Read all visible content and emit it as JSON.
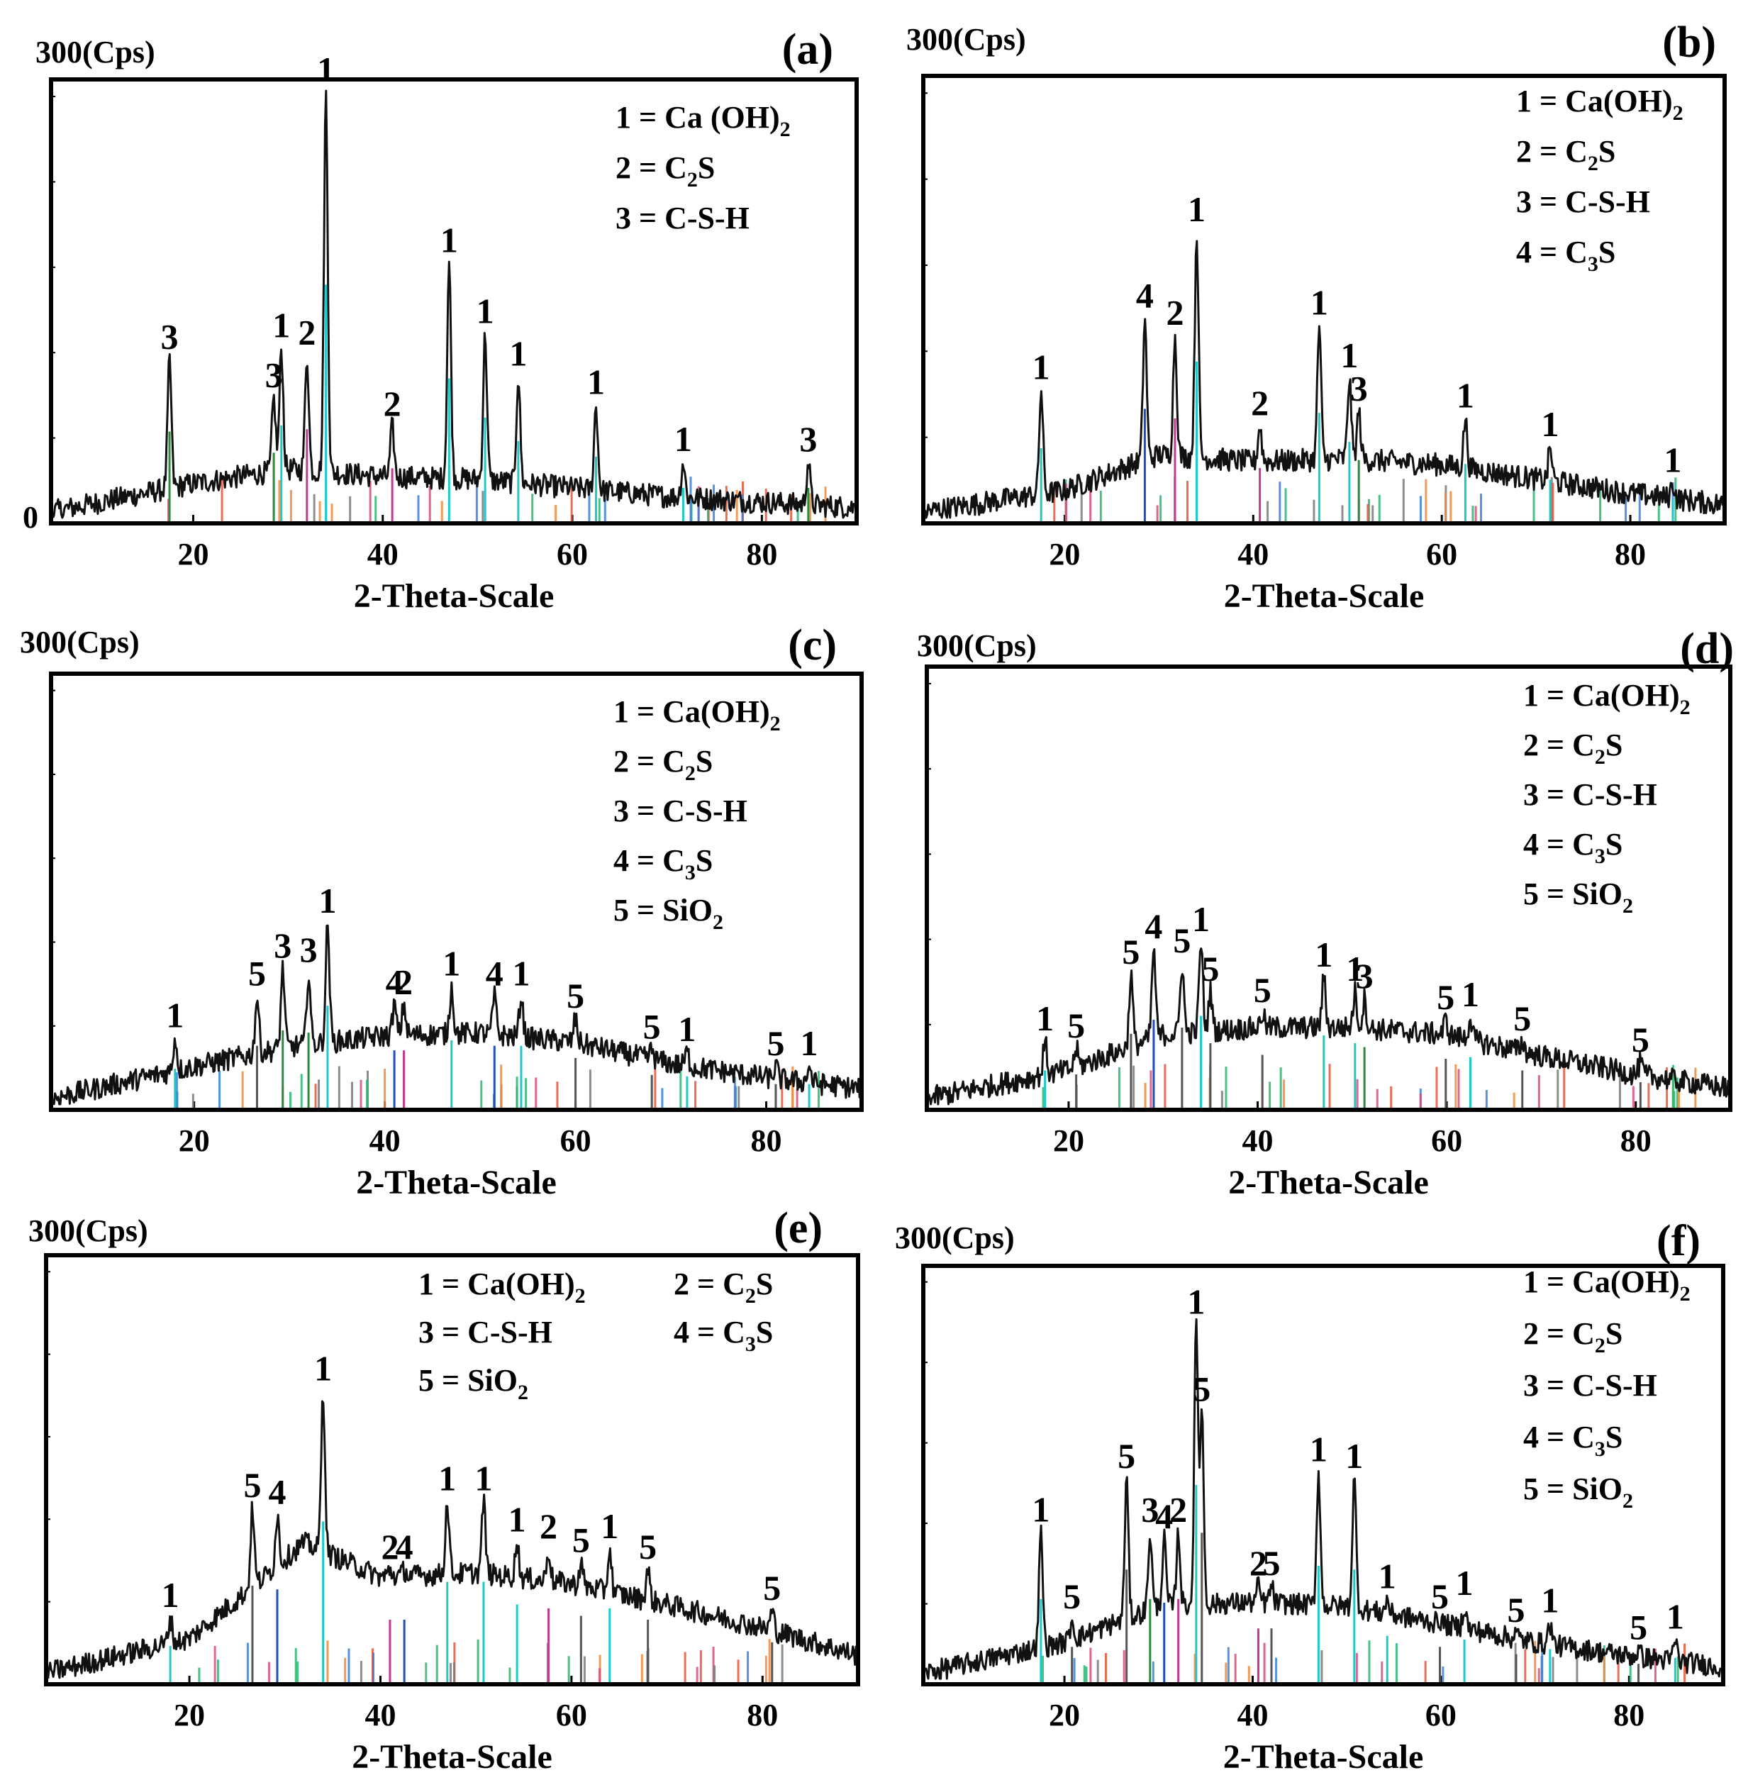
{
  "figure": {
    "x_axis_label": "2-Theta-Scale",
    "y_unit_label": "300(Cps)",
    "x_ticks": [
      20,
      40,
      60,
      80
    ],
    "x_range": [
      5,
      90
    ],
    "y_zero_label": "0"
  },
  "chart_data": [
    {
      "type": "line",
      "panel": "(a)",
      "xlabel": "2-Theta-Scale",
      "ylabel": "300(Cps)",
      "xlim": [
        5,
        90
      ],
      "ylim": [
        0,
        300
      ],
      "legend": [
        {
          "key": "1",
          "base": "Ca (OH)",
          "sub": "2",
          "tail": ""
        },
        {
          "key": "2",
          "base": "C",
          "sub": "2",
          "tail": "S"
        },
        {
          "key": "3",
          "base": "C-S-H",
          "sub": "",
          "tail": ""
        }
      ],
      "baseline": [
        [
          5,
          5
        ],
        [
          20,
          25
        ],
        [
          30,
          35
        ],
        [
          40,
          30
        ],
        [
          50,
          28
        ],
        [
          60,
          22
        ],
        [
          70,
          16
        ],
        [
          80,
          12
        ],
        [
          90,
          8
        ]
      ],
      "peaks": [
        {
          "x": 17.5,
          "y": 112,
          "label": "3"
        },
        {
          "x": 28.5,
          "y": 85,
          "label": "3"
        },
        {
          "x": 29.3,
          "y": 120,
          "label": "1"
        },
        {
          "x": 32.0,
          "y": 115,
          "label": "2"
        },
        {
          "x": 34.0,
          "y": 300,
          "label": "1"
        },
        {
          "x": 41.0,
          "y": 65,
          "label": "2"
        },
        {
          "x": 47.0,
          "y": 180,
          "label": "1"
        },
        {
          "x": 50.8,
          "y": 130,
          "label": "1"
        },
        {
          "x": 54.3,
          "y": 100,
          "label": "1"
        },
        {
          "x": 62.5,
          "y": 80,
          "label": "1"
        },
        {
          "x": 71.7,
          "y": 40,
          "label": "1"
        },
        {
          "x": 84.9,
          "y": 40,
          "label": "3"
        }
      ]
    },
    {
      "type": "line",
      "panel": "(b)",
      "xlabel": "2-Theta-Scale",
      "ylabel": "300(Cps)",
      "xlim": [
        5,
        90
      ],
      "ylim": [
        0,
        300
      ],
      "legend": [
        {
          "key": "1",
          "base": "Ca(OH)",
          "sub": "2",
          "tail": ""
        },
        {
          "key": "2",
          "base": "C",
          "sub": "2",
          "tail": "S"
        },
        {
          "key": "3",
          "base": "C-S-H",
          "sub": "",
          "tail": ""
        },
        {
          "key": "4",
          "base": "C",
          "sub": "3",
          "tail": "S"
        }
      ],
      "baseline": [
        [
          5,
          5
        ],
        [
          20,
          20
        ],
        [
          30,
          45
        ],
        [
          40,
          40
        ],
        [
          50,
          42
        ],
        [
          60,
          38
        ],
        [
          70,
          28
        ],
        [
          80,
          18
        ],
        [
          90,
          10
        ]
      ],
      "peaks": [
        {
          "x": 17.5,
          "y": 90,
          "label": "1"
        },
        {
          "x": 28.5,
          "y": 140,
          "label": "4"
        },
        {
          "x": 31.7,
          "y": 128,
          "label": "2"
        },
        {
          "x": 34.0,
          "y": 200,
          "label": "1"
        },
        {
          "x": 40.7,
          "y": 65,
          "label": "2"
        },
        {
          "x": 47.0,
          "y": 135,
          "label": "1"
        },
        {
          "x": 50.2,
          "y": 98,
          "label": "1"
        },
        {
          "x": 51.2,
          "y": 75,
          "label": "3"
        },
        {
          "x": 62.5,
          "y": 70,
          "label": "1"
        },
        {
          "x": 71.5,
          "y": 50,
          "label": "1"
        },
        {
          "x": 84.5,
          "y": 25,
          "label": "1"
        }
      ]
    },
    {
      "type": "line",
      "panel": "(c)",
      "xlabel": "2-Theta-Scale",
      "ylabel": "300(Cps)",
      "xlim": [
        5,
        90
      ],
      "ylim": [
        0,
        300
      ],
      "legend": [
        {
          "key": "1",
          "base": "Ca(OH)",
          "sub": "2",
          "tail": ""
        },
        {
          "key": "2",
          "base": "C",
          "sub": "2",
          "tail": "S"
        },
        {
          "key": "3",
          "base": "C-S-H",
          "sub": "",
          "tail": ""
        },
        {
          "key": "4",
          "base": "C",
          "sub": "3",
          "tail": "S"
        },
        {
          "key": "5",
          "base": "SiO",
          "sub": "2",
          "tail": ""
        }
      ],
      "baseline": [
        [
          5,
          5
        ],
        [
          20,
          28
        ],
        [
          30,
          42
        ],
        [
          40,
          50
        ],
        [
          50,
          52
        ],
        [
          60,
          45
        ],
        [
          70,
          30
        ],
        [
          80,
          20
        ],
        [
          90,
          12
        ]
      ],
      "peaks": [
        {
          "x": 18.0,
          "y": 48,
          "label": "1"
        },
        {
          "x": 26.6,
          "y": 78,
          "label": "5"
        },
        {
          "x": 29.3,
          "y": 98,
          "label": "3"
        },
        {
          "x": 32.0,
          "y": 95,
          "label": "3"
        },
        {
          "x": 34.0,
          "y": 130,
          "label": "1"
        },
        {
          "x": 41.0,
          "y": 72,
          "label": "4"
        },
        {
          "x": 42.0,
          "y": 72,
          "label": "2"
        },
        {
          "x": 47.0,
          "y": 85,
          "label": "1"
        },
        {
          "x": 51.5,
          "y": 78,
          "label": "4"
        },
        {
          "x": 54.3,
          "y": 78,
          "label": "1"
        },
        {
          "x": 60.0,
          "y": 62,
          "label": "5"
        },
        {
          "x": 68.0,
          "y": 40,
          "label": "5"
        },
        {
          "x": 71.7,
          "y": 38,
          "label": "1"
        },
        {
          "x": 81.0,
          "y": 28,
          "label": "5"
        },
        {
          "x": 84.5,
          "y": 28,
          "label": "1"
        }
      ]
    },
    {
      "type": "line",
      "panel": "(d)",
      "xlabel": "2-Theta-Scale",
      "ylabel": "300(Cps)",
      "xlim": [
        5,
        90
      ],
      "ylim": [
        0,
        300
      ],
      "legend": [
        {
          "key": "1",
          "base": "Ca(OH)",
          "sub": "2",
          "tail": ""
        },
        {
          "key": "2",
          "base": "C",
          "sub": "2",
          "tail": "S"
        },
        {
          "key": "3",
          "base": "C-S-H",
          "sub": "",
          "tail": ""
        },
        {
          "key": "4",
          "base": "C",
          "sub": "3",
          "tail": "S"
        },
        {
          "key": "5",
          "base": "SiO",
          "sub": "2",
          "tail": ""
        }
      ],
      "baseline": [
        [
          5,
          5
        ],
        [
          20,
          25
        ],
        [
          30,
          50
        ],
        [
          40,
          55
        ],
        [
          50,
          55
        ],
        [
          60,
          50
        ],
        [
          70,
          35
        ],
        [
          80,
          22
        ],
        [
          90,
          12
        ]
      ],
      "peaks": [
        {
          "x": 17.5,
          "y": 45,
          "label": "1"
        },
        {
          "x": 20.8,
          "y": 40,
          "label": "5"
        },
        {
          "x": 26.6,
          "y": 92,
          "label": "5"
        },
        {
          "x": 29.0,
          "y": 110,
          "label": "4"
        },
        {
          "x": 32.0,
          "y": 100,
          "label": "5"
        },
        {
          "x": 34.0,
          "y": 115,
          "label": "1"
        },
        {
          "x": 35.0,
          "y": 80,
          "label": "5"
        },
        {
          "x": 40.5,
          "y": 65,
          "label": "5"
        },
        {
          "x": 47.0,
          "y": 90,
          "label": "1"
        },
        {
          "x": 50.3,
          "y": 80,
          "label": "1"
        },
        {
          "x": 51.3,
          "y": 75,
          "label": "3"
        },
        {
          "x": 59.9,
          "y": 60,
          "label": "5"
        },
        {
          "x": 62.5,
          "y": 62,
          "label": "1"
        },
        {
          "x": 68.0,
          "y": 45,
          "label": "5"
        },
        {
          "x": 80.5,
          "y": 30,
          "label": "5"
        }
      ]
    },
    {
      "type": "line",
      "panel": "(e)",
      "xlabel": "2-Theta-Scale",
      "ylabel": "300(Cps)",
      "xlim": [
        5,
        90
      ],
      "ylim": [
        0,
        300
      ],
      "legend": [
        {
          "key": "1",
          "base": "Ca(OH)",
          "sub": "2",
          "tail": ""
        },
        {
          "key": "2",
          "base": "C",
          "sub": "2",
          "tail": "S"
        },
        {
          "key": "3",
          "base": "C-S-H",
          "sub": "",
          "tail": ""
        },
        {
          "key": "4",
          "base": "C",
          "sub": "3",
          "tail": "S"
        },
        {
          "key": "5",
          "base": "SiO",
          "sub": "2",
          "tail": ""
        }
      ],
      "baseline": [
        [
          5,
          5
        ],
        [
          20,
          30
        ],
        [
          27,
          70
        ],
        [
          32,
          100
        ],
        [
          40,
          75
        ],
        [
          50,
          78
        ],
        [
          60,
          70
        ],
        [
          70,
          55
        ],
        [
          80,
          38
        ],
        [
          90,
          18
        ]
      ],
      "peaks": [
        {
          "x": 18.0,
          "y": 45,
          "label": "1"
        },
        {
          "x": 26.6,
          "y": 125,
          "label": "5"
        },
        {
          "x": 29.2,
          "y": 120,
          "label": "4"
        },
        {
          "x": 34.0,
          "y": 210,
          "label": "1"
        },
        {
          "x": 41.0,
          "y": 80,
          "label": "2"
        },
        {
          "x": 42.5,
          "y": 80,
          "label": "4"
        },
        {
          "x": 47.0,
          "y": 130,
          "label": "1"
        },
        {
          "x": 50.8,
          "y": 130,
          "label": "1"
        },
        {
          "x": 54.3,
          "y": 100,
          "label": "1"
        },
        {
          "x": 57.6,
          "y": 95,
          "label": "2"
        },
        {
          "x": 61.0,
          "y": 85,
          "label": "5"
        },
        {
          "x": 64.0,
          "y": 95,
          "label": "1"
        },
        {
          "x": 68.0,
          "y": 80,
          "label": "5"
        },
        {
          "x": 81.0,
          "y": 50,
          "label": "5"
        }
      ]
    },
    {
      "type": "line",
      "panel": "(f)",
      "xlabel": "2-Theta-Scale",
      "ylabel": "300(Cps)",
      "xlim": [
        5,
        90
      ],
      "ylim": [
        0,
        300
      ],
      "legend": [
        {
          "key": "1",
          "base": "Ca(OH)",
          "sub": "2",
          "tail": ""
        },
        {
          "key": "2",
          "base": "C",
          "sub": "2",
          "tail": "S"
        },
        {
          "key": "3",
          "base": "C-S-H",
          "sub": "",
          "tail": ""
        },
        {
          "key": "4",
          "base": "C",
          "sub": "3",
          "tail": "S"
        },
        {
          "key": "5",
          "base": "SiO",
          "sub": "2",
          "tail": ""
        }
      ],
      "baseline": [
        [
          5,
          5
        ],
        [
          20,
          28
        ],
        [
          30,
          55
        ],
        [
          40,
          58
        ],
        [
          50,
          55
        ],
        [
          60,
          42
        ],
        [
          70,
          28
        ],
        [
          80,
          18
        ],
        [
          90,
          10
        ]
      ],
      "peaks": [
        {
          "x": 17.5,
          "y": 110,
          "label": "1"
        },
        {
          "x": 20.8,
          "y": 45,
          "label": "5"
        },
        {
          "x": 26.6,
          "y": 150,
          "label": "5"
        },
        {
          "x": 29.1,
          "y": 110,
          "label": "3"
        },
        {
          "x": 30.6,
          "y": 105,
          "label": "4"
        },
        {
          "x": 32.1,
          "y": 110,
          "label": "2"
        },
        {
          "x": 34.0,
          "y": 265,
          "label": "1"
        },
        {
          "x": 34.6,
          "y": 200,
          "label": "5"
        },
        {
          "x": 40.6,
          "y": 70,
          "label": "2"
        },
        {
          "x": 42.0,
          "y": 70,
          "label": "5"
        },
        {
          "x": 47.0,
          "y": 155,
          "label": "1"
        },
        {
          "x": 50.8,
          "y": 150,
          "label": "1"
        },
        {
          "x": 54.3,
          "y": 60,
          "label": "1"
        },
        {
          "x": 59.9,
          "y": 45,
          "label": "5"
        },
        {
          "x": 62.5,
          "y": 55,
          "label": "1"
        },
        {
          "x": 68.0,
          "y": 35,
          "label": "5"
        },
        {
          "x": 71.6,
          "y": 42,
          "label": "1"
        },
        {
          "x": 81.0,
          "y": 22,
          "label": "5"
        },
        {
          "x": 84.9,
          "y": 30,
          "label": "1"
        }
      ]
    }
  ]
}
